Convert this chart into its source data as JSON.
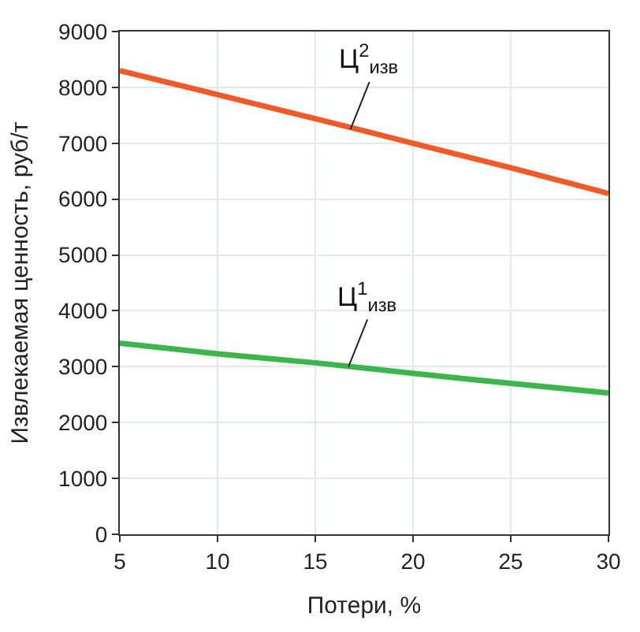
{
  "chart_data": {
    "type": "line",
    "xlabel": "Потери, %",
    "ylabel": "Извлекаемая ценность, руб/т",
    "x": [
      5,
      10,
      15,
      20,
      25,
      30
    ],
    "series": [
      {
        "color": "#f05a28",
        "values": [
          8300,
          7870,
          7440,
          7000,
          6560,
          6100
        ]
      },
      {
        "color": "#3cb64a",
        "values": [
          3420,
          3230,
          3070,
          2880,
          2700,
          2530
        ]
      }
    ],
    "annotations": [
      {
        "text": "Ц$^{2}$$_{изв}$",
        "x": 16.8,
        "y": 7250
      },
      {
        "text": "Ц$^{1}$$_{изв}$",
        "x": 16.7,
        "y": 3000
      }
    ],
    "xlim": [
      5,
      30
    ],
    "xticks": [
      5,
      10,
      15,
      20,
      25,
      30
    ],
    "ylim": [
      0,
      9000
    ],
    "yticks": [
      0,
      1000,
      2000,
      3000,
      4000,
      5000,
      6000,
      7000,
      8000,
      9000
    ],
    "grid": true,
    "marker": "none",
    "line_style": "solid"
  }
}
